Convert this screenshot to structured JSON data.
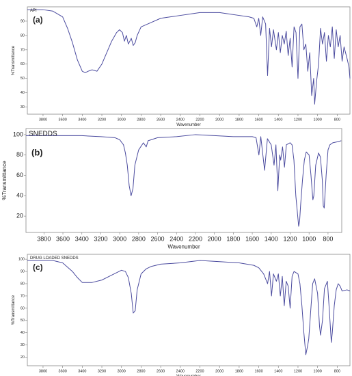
{
  "chart_data": [
    {
      "type": "line",
      "annotation": "(a)",
      "x_label": "Wavenumber",
      "y_label": "%Transmittance",
      "xlim": [
        3960,
        670
      ],
      "ylim": [
        25,
        100
      ],
      "xticks": [
        3800,
        3600,
        3400,
        3200,
        3000,
        2800,
        2600,
        2400,
        2200,
        2000,
        1800,
        1600,
        1400,
        1200,
        1000,
        800
      ],
      "yticks": [
        30,
        40,
        50,
        60,
        70,
        80,
        90
      ],
      "x": [
        3960,
        3800,
        3700,
        3600,
        3550,
        3500,
        3450,
        3400,
        3370,
        3340,
        3300,
        3250,
        3200,
        3150,
        3100,
        3050,
        3020,
        2990,
        2970,
        2950,
        2930,
        2900,
        2880,
        2860,
        2840,
        2800,
        2700,
        2600,
        2500,
        2400,
        2300,
        2200,
        2100,
        2000,
        1900,
        1800,
        1700,
        1650,
        1620,
        1600,
        1580,
        1560,
        1530,
        1510,
        1490,
        1470,
        1450,
        1420,
        1400,
        1380,
        1360,
        1340,
        1320,
        1300,
        1280,
        1260,
        1240,
        1220,
        1200,
        1180,
        1160,
        1140,
        1120,
        1100,
        1080,
        1060,
        1040,
        1030,
        1010,
        990,
        970,
        950,
        930,
        910,
        890,
        870,
        850,
        830,
        810,
        790,
        770,
        750,
        730,
        700,
        680,
        670
      ],
      "series": [
        {
          "name": "API",
          "color": "#4a4a9e",
          "values": [
            98,
            98,
            97,
            93,
            85,
            75,
            63,
            55,
            54,
            55,
            56,
            55,
            60,
            68,
            76,
            82,
            84,
            82,
            76,
            80,
            74,
            78,
            73,
            75,
            80,
            86,
            89,
            92,
            93,
            94,
            95,
            96,
            96,
            96,
            95,
            94,
            93,
            92,
            86,
            92,
            80,
            93,
            88,
            52,
            85,
            72,
            84,
            70,
            82,
            68,
            80,
            74,
            83,
            66,
            78,
            58,
            86,
            82,
            50,
            86,
            88,
            70,
            74,
            55,
            68,
            38,
            50,
            32,
            48,
            60,
            85,
            74,
            82,
            62,
            80,
            72,
            86,
            64,
            84,
            72,
            80,
            62,
            72,
            64,
            58,
            50
          ]
        }
      ]
    },
    {
      "type": "line",
      "annotation": "(b)",
      "x_label": "Wavenumber",
      "y_label": "%Transmittance",
      "xlim": [
        3990,
        655
      ],
      "ylim": [
        4,
        106
      ],
      "xticks": [
        3800,
        3600,
        3400,
        3200,
        3000,
        2800,
        2600,
        2400,
        2200,
        2000,
        1800,
        1600,
        1400,
        1200,
        1000,
        800
      ],
      "yticks": [
        20,
        40,
        60,
        80,
        100
      ],
      "x": [
        3990,
        3800,
        3600,
        3400,
        3200,
        3050,
        3000,
        2960,
        2940,
        2920,
        2900,
        2880,
        2860,
        2840,
        2800,
        2750,
        2720,
        2700,
        2600,
        2400,
        2200,
        2000,
        1800,
        1700,
        1600,
        1560,
        1530,
        1510,
        1470,
        1440,
        1400,
        1370,
        1350,
        1330,
        1310,
        1300,
        1280,
        1260,
        1240,
        1200,
        1180,
        1160,
        1140,
        1120,
        1110,
        1100,
        1090,
        1070,
        1050,
        1030,
        1000,
        980,
        960,
        950,
        930,
        900,
        880,
        860,
        850,
        840,
        820,
        800,
        780,
        750,
        700,
        660
      ],
      "series": [
        {
          "name": "SNEDDS",
          "color": "#4a4a9e",
          "values": [
            99,
            99,
            99,
            99,
            98,
            97,
            95,
            90,
            82,
            70,
            50,
            40,
            47,
            70,
            85,
            92,
            88,
            94,
            97,
            98,
            100,
            99,
            98,
            98,
            98,
            97,
            80,
            98,
            65,
            96,
            90,
            70,
            90,
            45,
            80,
            75,
            88,
            68,
            90,
            92,
            90,
            75,
            40,
            20,
            10,
            15,
            30,
            55,
            75,
            83,
            80,
            60,
            36,
            40,
            70,
            82,
            78,
            55,
            30,
            28,
            60,
            85,
            90,
            92,
            93,
            94
          ]
        }
      ]
    },
    {
      "type": "line",
      "annotation": "(c)",
      "x_label": "Wavenumber",
      "y_label": "%Transmittance",
      "xlim": [
        3960,
        670
      ],
      "ylim": [
        13,
        104
      ],
      "xticks": [
        3800,
        3600,
        3400,
        3200,
        3000,
        2800,
        2600,
        2400,
        2200,
        2000,
        1800,
        1600,
        1400,
        1200,
        1000,
        800
      ],
      "yticks": [
        20,
        30,
        40,
        50,
        60,
        70,
        80,
        90,
        100
      ],
      "x": [
        3960,
        3800,
        3700,
        3600,
        3500,
        3450,
        3400,
        3350,
        3300,
        3200,
        3100,
        3000,
        2960,
        2930,
        2900,
        2880,
        2860,
        2840,
        2800,
        2750,
        2700,
        2600,
        2400,
        2200,
        2000,
        1800,
        1650,
        1600,
        1550,
        1510,
        1490,
        1470,
        1450,
        1420,
        1400,
        1380,
        1360,
        1340,
        1320,
        1300,
        1280,
        1260,
        1240,
        1200,
        1180,
        1160,
        1140,
        1120,
        1100,
        1090,
        1070,
        1050,
        1030,
        1000,
        980,
        970,
        950,
        930,
        900,
        880,
        860,
        850,
        830,
        810,
        790,
        770,
        750,
        700,
        670
      ],
      "series": [
        {
          "name": "DRUG LOADED SNEDDS",
          "color": "#4a4a9e",
          "values": [
            99,
            99,
            99,
            97,
            90,
            85,
            81,
            81,
            81,
            83,
            87,
            91,
            90,
            85,
            72,
            56,
            58,
            75,
            88,
            92,
            94,
            96,
            97,
            99,
            98,
            97,
            95,
            93,
            88,
            80,
            90,
            70,
            88,
            82,
            88,
            70,
            86,
            62,
            82,
            78,
            60,
            86,
            90,
            88,
            80,
            62,
            40,
            22,
            30,
            35,
            58,
            80,
            84,
            72,
            45,
            38,
            50,
            76,
            82,
            58,
            32,
            40,
            62,
            75,
            80,
            78,
            74,
            75,
            74
          ]
        }
      ]
    }
  ]
}
